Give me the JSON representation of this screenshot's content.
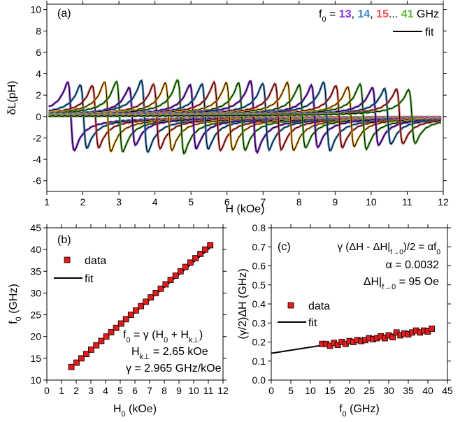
{
  "chart_data": [
    {
      "id": "a",
      "type": "line",
      "panel_label": "(a)",
      "xlabel": "H (kOe)",
      "ylabel": "δL(pH)",
      "xlim": [
        1,
        12
      ],
      "ylim": [
        -7,
        10.5
      ],
      "xticks": [
        1,
        2,
        3,
        4,
        5,
        6,
        7,
        8,
        9,
        10,
        11,
        12
      ],
      "yticks": [
        -6,
        -4,
        -2,
        0,
        2,
        4,
        6,
        8,
        10
      ],
      "legend": {
        "prefix": "f",
        "prefix_sub": "0",
        "equals": " = ",
        "values": [
          {
            "text": "13",
            "color": "#8a2be2"
          },
          {
            "text": ", ",
            "color": "#000000"
          },
          {
            "text": "14",
            "color": "#3a86c8"
          },
          {
            "text": ", ",
            "color": "#000000"
          },
          {
            "text": "15",
            "color": "#f05050"
          },
          {
            "text": "... ",
            "color": "#000000"
          },
          {
            "text": "41",
            "color": "#55bb33"
          },
          {
            "text": " GHz",
            "color": "#000000"
          }
        ],
        "fit_label": "fit",
        "position": "top-right"
      },
      "palette": [
        "#8a2be2",
        "#3a86c8",
        "#f05050",
        "#f0a81e",
        "#55bb33"
      ],
      "series": [
        {
          "f0": 13,
          "H_res": 1.67,
          "dH": 0.09,
          "amp": 6.4,
          "color": "#8a2be2"
        },
        {
          "f0": 14,
          "H_res": 2.02,
          "dH": 0.09,
          "amp": 5.9,
          "color": "#3a86c8"
        },
        {
          "f0": 15,
          "H_res": 2.35,
          "dH": 0.09,
          "amp": 5.8,
          "color": "#f05050"
        },
        {
          "f0": 16,
          "H_res": 2.69,
          "dH": 0.09,
          "amp": 6.5,
          "color": "#f0a81e"
        },
        {
          "f0": 17,
          "H_res": 3.02,
          "dH": 0.09,
          "amp": 6.6,
          "color": "#55bb33"
        },
        {
          "f0": 18,
          "H_res": 3.37,
          "dH": 0.09,
          "amp": 5.4,
          "color": "#8a2be2"
        },
        {
          "f0": 19,
          "H_res": 3.71,
          "dH": 0.09,
          "amp": 6.7,
          "color": "#3a86c8"
        },
        {
          "f0": 20,
          "H_res": 4.05,
          "dH": 0.09,
          "amp": 6.0,
          "color": "#f05050"
        },
        {
          "f0": 21,
          "H_res": 4.38,
          "dH": 0.09,
          "amp": 6.3,
          "color": "#f0a81e"
        },
        {
          "f0": 22,
          "H_res": 4.72,
          "dH": 0.09,
          "amp": 6.9,
          "color": "#55bb33"
        },
        {
          "f0": 23,
          "H_res": 5.06,
          "dH": 0.09,
          "amp": 6.0,
          "color": "#8a2be2"
        },
        {
          "f0": 24,
          "H_res": 5.39,
          "dH": 0.09,
          "amp": 6.1,
          "color": "#3a86c8"
        },
        {
          "f0": 25,
          "H_res": 5.73,
          "dH": 0.09,
          "amp": 6.4,
          "color": "#f05050"
        },
        {
          "f0": 26,
          "H_res": 6.07,
          "dH": 0.09,
          "amp": 6.3,
          "color": "#f0a81e"
        },
        {
          "f0": 27,
          "H_res": 6.41,
          "dH": 0.09,
          "amp": 6.3,
          "color": "#55bb33"
        },
        {
          "f0": 28,
          "H_res": 6.74,
          "dH": 0.09,
          "amp": 6.7,
          "color": "#8a2be2"
        },
        {
          "f0": 29,
          "H_res": 7.08,
          "dH": 0.09,
          "amp": 6.2,
          "color": "#3a86c8"
        },
        {
          "f0": 30,
          "H_res": 7.42,
          "dH": 0.09,
          "amp": 6.2,
          "color": "#f05050"
        },
        {
          "f0": 31,
          "H_res": 7.76,
          "dH": 0.09,
          "amp": 6.4,
          "color": "#f0a81e"
        },
        {
          "f0": 32,
          "H_res": 8.09,
          "dH": 0.09,
          "amp": 5.9,
          "color": "#55bb33"
        },
        {
          "f0": 33,
          "H_res": 8.43,
          "dH": 0.09,
          "amp": 5.8,
          "color": "#8a2be2"
        },
        {
          "f0": 34,
          "H_res": 8.77,
          "dH": 0.09,
          "amp": 6.4,
          "color": "#3a86c8"
        },
        {
          "f0": 35,
          "H_res": 9.11,
          "dH": 0.09,
          "amp": 5.8,
          "color": "#f05050"
        },
        {
          "f0": 36,
          "H_res": 9.44,
          "dH": 0.09,
          "amp": 5.6,
          "color": "#f0a81e"
        },
        {
          "f0": 37,
          "H_res": 9.78,
          "dH": 0.09,
          "amp": 6.1,
          "color": "#55bb33"
        },
        {
          "f0": 38,
          "H_res": 10.12,
          "dH": 0.09,
          "amp": 5.4,
          "color": "#8a2be2"
        },
        {
          "f0": 39,
          "H_res": 10.46,
          "dH": 0.09,
          "amp": 5.2,
          "color": "#3a86c8"
        },
        {
          "f0": 40,
          "H_res": 10.79,
          "dH": 0.09,
          "amp": 5.1,
          "color": "#f05050"
        },
        {
          "f0": 41,
          "H_res": 11.13,
          "dH": 0.09,
          "amp": 5.0,
          "color": "#55bb33"
        }
      ]
    },
    {
      "id": "b",
      "type": "scatter",
      "panel_label": "(b)",
      "xlabel": "H",
      "xlabel_sub": "0",
      "xlabel_unit": " (kOe)",
      "ylabel": "f",
      "ylabel_sub": "0",
      "ylabel_unit": " (GHz)",
      "xlim": [
        0,
        12
      ],
      "ylim": [
        10,
        45
      ],
      "xticks": [
        0,
        1,
        2,
        3,
        4,
        5,
        6,
        7,
        8,
        9,
        10,
        11,
        12
      ],
      "yticks": [
        10,
        15,
        20,
        25,
        30,
        35,
        40,
        45
      ],
      "legend": {
        "data_label": "data",
        "fit_label": "fit",
        "position": "top-left"
      },
      "annotations": {
        "line1": "f",
        "line1_sub": "0",
        "line1_rest": " = γ (H",
        "line1_sub2": "0",
        "line1_rest2": " + H",
        "line1_sub3": "k⊥",
        "line1_end": ")",
        "line2": "H",
        "line2_sub": "k⊥",
        "line2_rest": " = 2.65 kOe",
        "line3": "γ = 2.965 GHz/kOe"
      },
      "x": [
        1.67,
        2.02,
        2.35,
        2.69,
        3.02,
        3.37,
        3.71,
        4.05,
        4.38,
        4.72,
        5.06,
        5.39,
        5.73,
        6.07,
        6.41,
        6.74,
        7.08,
        7.42,
        7.76,
        8.09,
        8.43,
        8.77,
        9.11,
        9.44,
        9.78,
        10.12,
        10.46,
        10.79,
        11.13
      ],
      "y": [
        13,
        14,
        15,
        16,
        17,
        18,
        19,
        20,
        21,
        22,
        23,
        24,
        25,
        26,
        27,
        28,
        29,
        30,
        31,
        32,
        33,
        34,
        35,
        36,
        37,
        38,
        39,
        40,
        41
      ],
      "fit": {
        "gamma": 2.965,
        "Hk": 2.65
      }
    },
    {
      "id": "c",
      "type": "scatter",
      "panel_label": "(c)",
      "xlabel": "f",
      "xlabel_sub": "0",
      "xlabel_unit": " (GHz)",
      "ylabel": "(γ/2)ΔH (GHz)",
      "xlim": [
        0,
        45
      ],
      "ylim": [
        0,
        0.8
      ],
      "xticks": [
        0,
        5,
        10,
        15,
        20,
        25,
        30,
        35,
        40,
        45
      ],
      "yticks": [
        0.0,
        0.1,
        0.2,
        0.3,
        0.4,
        0.5,
        0.6,
        0.7,
        0.8
      ],
      "legend": {
        "data_label": "data",
        "fit_label": "fit",
        "position": "center-left"
      },
      "annotations": {
        "line1_a": "γ (ΔH - ΔH|",
        "line1_sub": "f→0",
        "line1_b": ")/2 = αf",
        "line1_sub2": "0",
        "line2": "α  = 0.0032",
        "line3_a": "ΔH|",
        "line3_sub": "f→0",
        "line3_b": " = 95 Oe"
      },
      "x": [
        13,
        14,
        15,
        16,
        17,
        18,
        19,
        20,
        21,
        22,
        23,
        24,
        25,
        26,
        27,
        28,
        29,
        30,
        31,
        32,
        33,
        34,
        35,
        36,
        37,
        38,
        39,
        40,
        41
      ],
      "y": [
        0.19,
        0.19,
        0.18,
        0.195,
        0.185,
        0.2,
        0.19,
        0.205,
        0.2,
        0.21,
        0.205,
        0.21,
        0.22,
        0.215,
        0.22,
        0.23,
        0.22,
        0.235,
        0.225,
        0.25,
        0.235,
        0.245,
        0.24,
        0.25,
        0.26,
        0.25,
        0.26,
        0.255,
        0.27
      ],
      "fit": {
        "intercept": 0.141,
        "slope": 0.0032
      }
    }
  ]
}
